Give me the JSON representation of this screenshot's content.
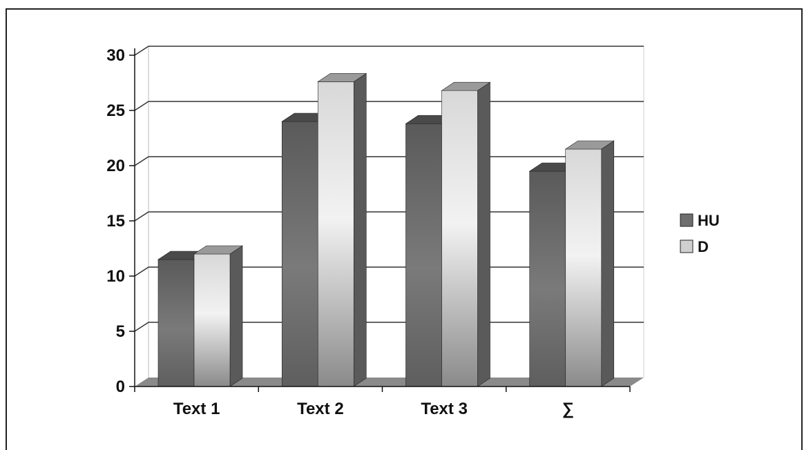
{
  "chart_data": {
    "type": "bar",
    "title": "",
    "xlabel": "",
    "ylabel": "",
    "categories": [
      "Text 1",
      "Text 2",
      "Text 3",
      "∑"
    ],
    "series": [
      {
        "name": "HU",
        "values": [
          11.5,
          24.0,
          23.8,
          19.5
        ]
      },
      {
        "name": "D",
        "values": [
          12.0,
          27.6,
          26.8,
          21.5
        ]
      }
    ],
    "ylim": [
      0,
      30
    ],
    "yticks": [
      0,
      5,
      10,
      15,
      20,
      25,
      30
    ],
    "grid": true,
    "legend_position": "right",
    "three_d": true,
    "colors": {
      "HU": "#6e6e6e",
      "D": "#cfcfcf",
      "grid": "#333333",
      "floor": "#8a8a8a"
    }
  }
}
